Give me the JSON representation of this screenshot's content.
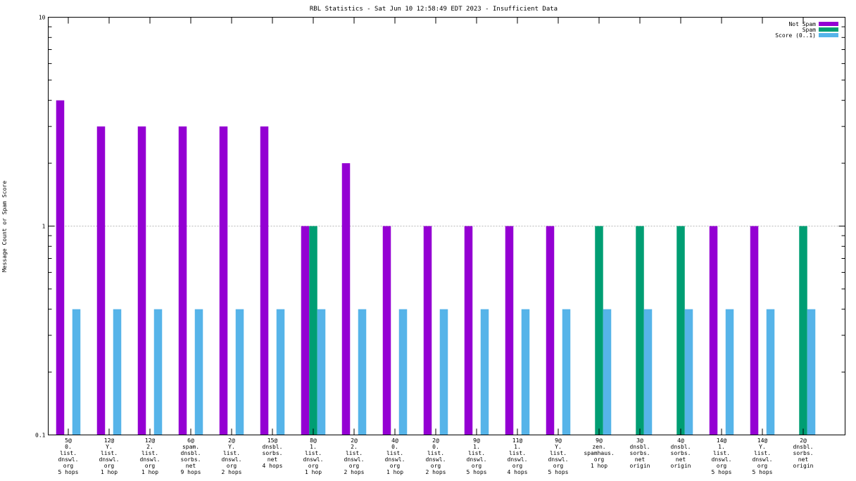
{
  "chart_data": {
    "type": "bar",
    "title": "RBL Statistics - Sat Jun 10 12:58:49 EDT 2023 - Insufficient Data",
    "xlabel": "",
    "ylabel": "Message Count or Spam Score",
    "yscale": "log",
    "ylim": [
      0.1,
      10
    ],
    "yticks": [
      {
        "value": 0.1,
        "label": "0.1"
      },
      {
        "value": 1,
        "label": "1"
      },
      {
        "value": 10,
        "label": "10"
      }
    ],
    "grid": true,
    "legend_position": "top-right",
    "categories": [
      [
        "5@",
        "0.",
        "list.",
        "dnswl.",
        "org",
        "5 hops"
      ],
      [
        "12@",
        "Y.",
        "list.",
        "dnswl.",
        "org",
        "1 hop"
      ],
      [
        "12@",
        "2.",
        "list.",
        "dnswl.",
        "org",
        "1 hop"
      ],
      [
        "6@",
        "spam.",
        "dnsbl.",
        "sorbs.",
        "net",
        "9 hops"
      ],
      [
        "2@",
        "Y.",
        "list.",
        "dnswl.",
        "org",
        "2 hops"
      ],
      [
        "15@",
        "dnsbl.",
        "sorbs.",
        "net",
        "4 hops"
      ],
      [
        "8@",
        "1.",
        "list.",
        "dnswl.",
        "org",
        "1 hop"
      ],
      [
        "2@",
        "2.",
        "list.",
        "dnswl.",
        "org",
        "2 hops"
      ],
      [
        "4@",
        "0.",
        "list.",
        "dnswl.",
        "org",
        "1 hop"
      ],
      [
        "2@",
        "0.",
        "list.",
        "dnswl.",
        "org",
        "2 hops"
      ],
      [
        "9@",
        "1.",
        "list.",
        "dnswl.",
        "org",
        "5 hops"
      ],
      [
        "11@",
        "1.",
        "list.",
        "dnswl.",
        "org",
        "4 hops"
      ],
      [
        "9@",
        "Y.",
        "list.",
        "dnswl.",
        "org",
        "5 hops"
      ],
      [
        "9@",
        "zen.",
        "spamhaus.",
        "org",
        "1 hop"
      ],
      [
        "3@",
        "dnsbl.",
        "sorbs.",
        "net",
        "origin"
      ],
      [
        "4@",
        "dnsbl.",
        "sorbs.",
        "net",
        "origin"
      ],
      [
        "14@",
        "1.",
        "list.",
        "dnswl.",
        "org",
        "5 hops"
      ],
      [
        "14@",
        "Y.",
        "list.",
        "dnswl.",
        "org",
        "5 hops"
      ],
      [
        "2@",
        "dnsbl.",
        "sorbs.",
        "net",
        "origin"
      ]
    ],
    "series": [
      {
        "name": "Not Spam",
        "color": "#9400d3",
        "values": [
          4,
          3,
          3,
          3,
          3,
          3,
          1,
          2,
          1,
          1,
          1,
          1,
          1,
          null,
          null,
          null,
          1,
          1,
          null
        ]
      },
      {
        "name": "Spam",
        "color": "#009e73",
        "values": [
          null,
          null,
          null,
          null,
          null,
          null,
          1,
          null,
          null,
          null,
          null,
          null,
          null,
          1,
          1,
          1,
          null,
          null,
          1
        ]
      },
      {
        "name": "Score (0..1)",
        "color": "#56b4e9",
        "values": [
          0.4,
          0.4,
          0.4,
          0.4,
          0.4,
          0.4,
          0.4,
          0.4,
          0.4,
          0.4,
          0.4,
          0.4,
          0.4,
          0.4,
          0.4,
          0.4,
          0.4,
          0.4,
          0.4
        ]
      }
    ]
  }
}
